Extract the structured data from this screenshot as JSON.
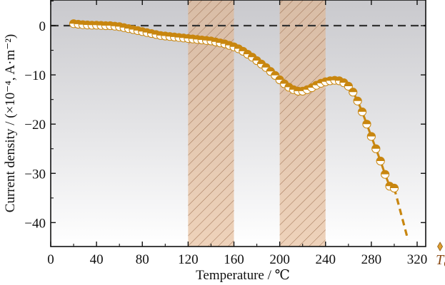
{
  "chart_data": {
    "type": "scatter",
    "xlabel": "Temperature / ℃",
    "ylabel": "Current density / (×10⁻⁴, A·m⁻²)",
    "xlim": [
      0,
      345
    ],
    "ylim": [
      -45,
      5
    ],
    "xticks": [
      0,
      40,
      80,
      120,
      160,
      200,
      240,
      280,
      320
    ],
    "yticks": [
      0,
      -10,
      -20,
      -30,
      -40
    ],
    "grid": false,
    "background": "vertical gradient, grey at top to white at bottom",
    "zero_line": {
      "y": 0,
      "style": "dashed",
      "color": "#333333"
    },
    "shaded_regions": [
      {
        "x": [
          120,
          160
        ],
        "color": "#E2B48C",
        "pattern": "diagonal-hatch"
      },
      {
        "x": [
          200,
          240
        ],
        "color": "#E2B48C",
        "pattern": "diagonal-hatch"
      }
    ],
    "curie_marker": {
      "x": 340,
      "label_main": "T",
      "label_sub": "C",
      "color": "#8B4A16"
    },
    "series": [
      {
        "color": "#C8860F",
        "marker": "half-filled circle",
        "x": [
          20,
          24,
          28,
          32,
          36,
          40,
          44,
          48,
          52,
          56,
          60,
          64,
          68,
          72,
          76,
          80,
          84,
          88,
          92,
          96,
          100,
          104,
          108,
          112,
          116,
          120,
          124,
          128,
          132,
          136,
          140,
          144,
          148,
          152,
          156,
          160,
          164,
          168,
          172,
          176,
          180,
          184,
          188,
          192,
          196,
          200,
          204,
          208,
          212,
          216,
          220,
          224,
          228,
          232,
          236,
          240,
          244,
          248,
          252,
          256,
          260,
          264,
          268,
          272,
          276,
          280,
          284,
          288,
          292,
          296,
          300
        ],
        "y": [
          0.4,
          0.3,
          0.2,
          0.15,
          0.1,
          0.1,
          0.05,
          0.0,
          0.0,
          -0.1,
          -0.2,
          -0.4,
          -0.6,
          -0.8,
          -1.0,
          -1.2,
          -1.4,
          -1.6,
          -1.8,
          -2.0,
          -2.1,
          -2.2,
          -2.3,
          -2.4,
          -2.5,
          -2.6,
          -2.7,
          -2.8,
          -2.9,
          -3.0,
          -3.1,
          -3.3,
          -3.5,
          -3.7,
          -4.0,
          -4.3,
          -4.7,
          -5.2,
          -5.8,
          -6.4,
          -7.1,
          -7.8,
          -8.5,
          -9.3,
          -10.1,
          -11.0,
          -11.8,
          -12.5,
          -13.0,
          -13.3,
          -13.3,
          -13.0,
          -12.6,
          -12.1,
          -11.7,
          -11.4,
          -11.2,
          -11.1,
          -11.2,
          -11.6,
          -12.3,
          -13.5,
          -15.3,
          -17.5,
          -20.0,
          -22.5,
          -25.0,
          -27.5,
          -30.2,
          -32.6,
          -33.0
        ],
        "dashed_extension": {
          "x": [
            300,
            312
          ],
          "y": [
            -33.0,
            -43.5
          ]
        }
      }
    ]
  }
}
